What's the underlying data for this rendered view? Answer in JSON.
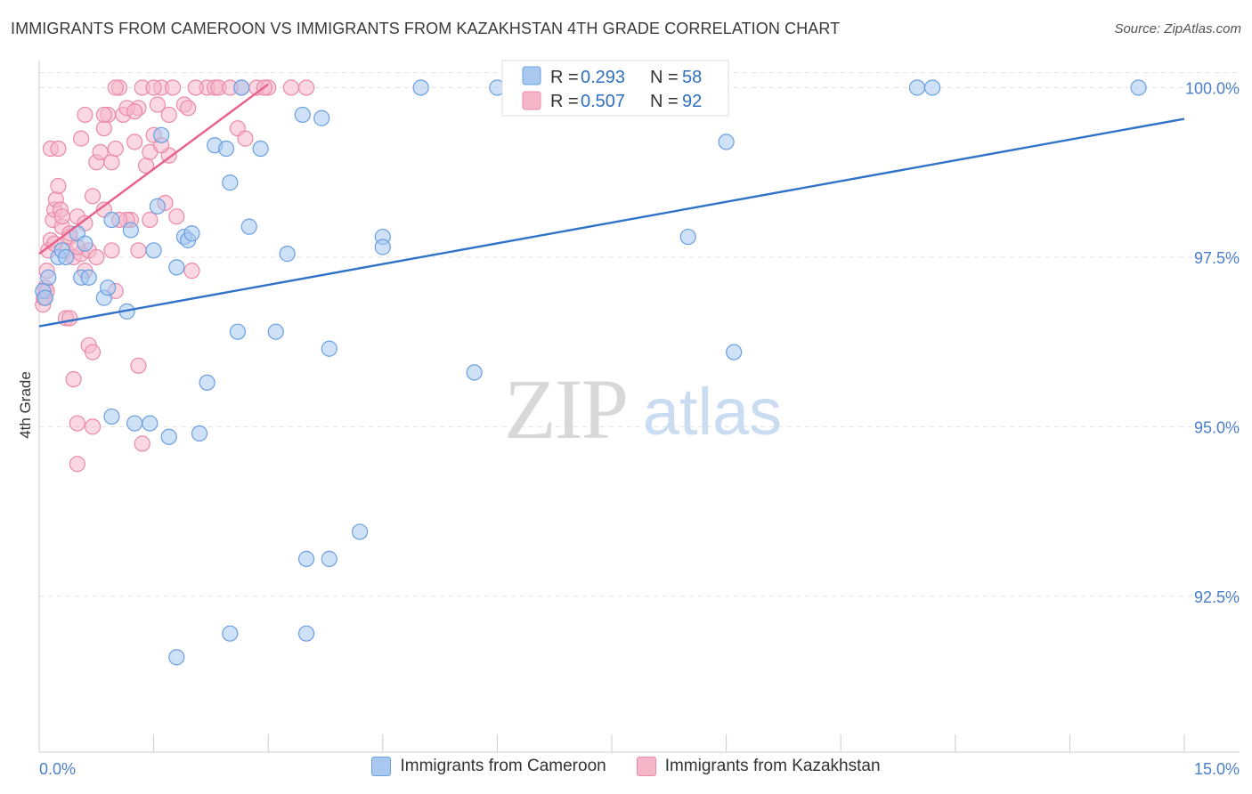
{
  "title": "IMMIGRANTS FROM CAMEROON VS IMMIGRANTS FROM KAZAKHSTAN 4TH GRADE CORRELATION CHART",
  "source": "Source: ZipAtlas.com",
  "watermark": {
    "zip": "ZIP",
    "atlas": "atlas"
  },
  "colors": {
    "blue_fill": "#a8c8f0",
    "blue_stroke": "#6a9fe0",
    "blue_line": "#2f72c8",
    "pink_fill": "#f5b6ca",
    "pink_stroke": "#ea8aa8",
    "pink_line": "#e8608a",
    "value_text": "#2f6fc0",
    "grid": "#e2e2e2"
  },
  "legend": {
    "r_label": "R =",
    "n_label": "N =",
    "cameroon": {
      "r": "0.293",
      "n": "58"
    },
    "kazakhstan": {
      "r": "0.507",
      "n": "92"
    }
  },
  "chart_data": {
    "type": "scatter",
    "title": "IMMIGRANTS FROM CAMEROON VS IMMIGRANTS FROM KAZAKHSTAN 4TH GRADE CORRELATION CHART",
    "xlabel": "",
    "ylabel": "4th Grade",
    "xlim": [
      0,
      15
    ],
    "ylim": [
      90.2,
      100.4
    ],
    "x_tick_labels": [
      "0.0%",
      "15.0%"
    ],
    "y_ticks": [
      92.5,
      95.0,
      97.5,
      100.0
    ],
    "y_tick_labels": [
      "92.5%",
      "95.0%",
      "97.5%",
      "100.0%"
    ],
    "grid": true,
    "legend_position": "top-center",
    "series": [
      {
        "name": "Immigrants from Cameroon",
        "color": "#a8c8f0",
        "trend": {
          "x": [
            0,
            15
          ],
          "y": [
            96.48,
            99.54
          ]
        },
        "points": [
          [
            0.05,
            97.0
          ],
          [
            0.08,
            96.9
          ],
          [
            0.12,
            97.2
          ],
          [
            0.25,
            97.5
          ],
          [
            0.3,
            97.6
          ],
          [
            0.35,
            97.5
          ],
          [
            0.5,
            97.85
          ],
          [
            0.55,
            97.2
          ],
          [
            0.6,
            97.7
          ],
          [
            0.65,
            97.2
          ],
          [
            0.85,
            96.9
          ],
          [
            0.9,
            97.05
          ],
          [
            0.95,
            98.05
          ],
          [
            1.15,
            96.7
          ],
          [
            1.2,
            97.9
          ],
          [
            1.5,
            97.6
          ],
          [
            1.55,
            98.25
          ],
          [
            1.6,
            99.3
          ],
          [
            1.8,
            97.35
          ],
          [
            1.9,
            97.8
          ],
          [
            1.95,
            97.75
          ],
          [
            2.0,
            97.85
          ],
          [
            2.3,
            99.15
          ],
          [
            2.45,
            99.1
          ],
          [
            2.5,
            98.6
          ],
          [
            2.75,
            97.95
          ],
          [
            2.9,
            99.1
          ],
          [
            3.25,
            97.55
          ],
          [
            3.45,
            99.6
          ],
          [
            3.7,
            99.55
          ],
          [
            4.5,
            97.8
          ],
          [
            4.5,
            97.65
          ],
          [
            5.0,
            100.0
          ],
          [
            6.0,
            100.0
          ],
          [
            6.3,
            100.0
          ],
          [
            8.5,
            97.8
          ],
          [
            9.1,
            96.1
          ],
          [
            9.0,
            99.2
          ],
          [
            11.5,
            100.0
          ],
          [
            11.7,
            100.0
          ],
          [
            14.4,
            100.0
          ],
          [
            2.6,
            96.4
          ],
          [
            3.1,
            96.4
          ],
          [
            3.8,
            96.15
          ],
          [
            5.7,
            95.8
          ],
          [
            2.2,
            95.65
          ],
          [
            0.95,
            95.15
          ],
          [
            1.25,
            95.05
          ],
          [
            1.45,
            95.05
          ],
          [
            1.7,
            94.85
          ],
          [
            2.1,
            94.9
          ],
          [
            4.2,
            93.45
          ],
          [
            3.5,
            93.05
          ],
          [
            3.8,
            93.05
          ],
          [
            2.5,
            91.95
          ],
          [
            3.5,
            91.95
          ],
          [
            1.8,
            91.6
          ],
          [
            2.65,
            100.0
          ]
        ]
      },
      {
        "name": "Immigrants from Kazakhstan",
        "color": "#f5b6ca",
        "trend": {
          "x": [
            0,
            3.0
          ],
          "y": [
            97.55,
            100.05
          ]
        },
        "points": [
          [
            0.05,
            96.8
          ],
          [
            0.06,
            96.9
          ],
          [
            0.08,
            97.05
          ],
          [
            0.1,
            97.3
          ],
          [
            0.12,
            97.6
          ],
          [
            0.15,
            97.75
          ],
          [
            0.18,
            98.05
          ],
          [
            0.2,
            98.2
          ],
          [
            0.22,
            98.35
          ],
          [
            0.25,
            98.55
          ],
          [
            0.28,
            98.2
          ],
          [
            0.3,
            97.95
          ],
          [
            0.35,
            97.6
          ],
          [
            0.4,
            97.8
          ],
          [
            0.45,
            97.5
          ],
          [
            0.5,
            98.1
          ],
          [
            0.55,
            97.55
          ],
          [
            0.6,
            97.3
          ],
          [
            0.65,
            97.6
          ],
          [
            0.7,
            98.4
          ],
          [
            0.75,
            98.9
          ],
          [
            0.8,
            99.05
          ],
          [
            0.85,
            99.4
          ],
          [
            0.9,
            99.6
          ],
          [
            0.95,
            98.9
          ],
          [
            1.0,
            99.1
          ],
          [
            1.05,
            100.0
          ],
          [
            1.1,
            99.6
          ],
          [
            1.2,
            98.05
          ],
          [
            1.25,
            99.2
          ],
          [
            1.3,
            99.7
          ],
          [
            1.35,
            100.0
          ],
          [
            1.4,
            98.85
          ],
          [
            1.45,
            99.05
          ],
          [
            1.5,
            99.3
          ],
          [
            1.55,
            99.75
          ],
          [
            1.6,
            100.0
          ],
          [
            1.65,
            98.3
          ],
          [
            1.7,
            99.0
          ],
          [
            1.8,
            98.1
          ],
          [
            1.9,
            99.75
          ],
          [
            2.0,
            97.3
          ],
          [
            2.2,
            100.0
          ],
          [
            2.3,
            100.0
          ],
          [
            2.6,
            99.4
          ],
          [
            2.7,
            99.25
          ],
          [
            2.85,
            100.0
          ],
          [
            3.0,
            100.0
          ],
          [
            3.3,
            100.0
          ],
          [
            3.5,
            100.0
          ],
          [
            0.35,
            96.6
          ],
          [
            0.4,
            96.6
          ],
          [
            0.65,
            96.2
          ],
          [
            0.7,
            96.1
          ],
          [
            1.0,
            97.0
          ],
          [
            1.3,
            97.6
          ],
          [
            0.45,
            95.7
          ],
          [
            0.5,
            95.05
          ],
          [
            0.7,
            95.0
          ],
          [
            1.3,
            95.9
          ],
          [
            1.35,
            94.75
          ],
          [
            0.5,
            94.45
          ],
          [
            0.15,
            99.1
          ],
          [
            0.25,
            99.1
          ],
          [
            0.55,
            99.25
          ],
          [
            0.85,
            99.6
          ],
          [
            1.15,
            99.7
          ],
          [
            1.5,
            100.0
          ],
          [
            1.75,
            100.0
          ],
          [
            2.05,
            100.0
          ],
          [
            2.35,
            100.0
          ],
          [
            2.65,
            100.0
          ],
          [
            0.95,
            97.6
          ],
          [
            1.15,
            98.05
          ],
          [
            0.6,
            99.6
          ],
          [
            1.0,
            100.0
          ],
          [
            1.25,
            99.65
          ],
          [
            1.7,
            99.6
          ],
          [
            1.95,
            99.7
          ],
          [
            0.3,
            98.1
          ],
          [
            0.6,
            98.0
          ],
          [
            0.85,
            98.2
          ],
          [
            1.05,
            98.05
          ],
          [
            0.2,
            97.7
          ],
          [
            0.75,
            97.5
          ],
          [
            0.5,
            97.65
          ],
          [
            0.4,
            97.85
          ],
          [
            1.45,
            98.05
          ],
          [
            1.6,
            99.15
          ],
          [
            2.5,
            100.0
          ],
          [
            0.1,
            97.0
          ],
          [
            2.95,
            100.0
          ]
        ]
      }
    ]
  }
}
